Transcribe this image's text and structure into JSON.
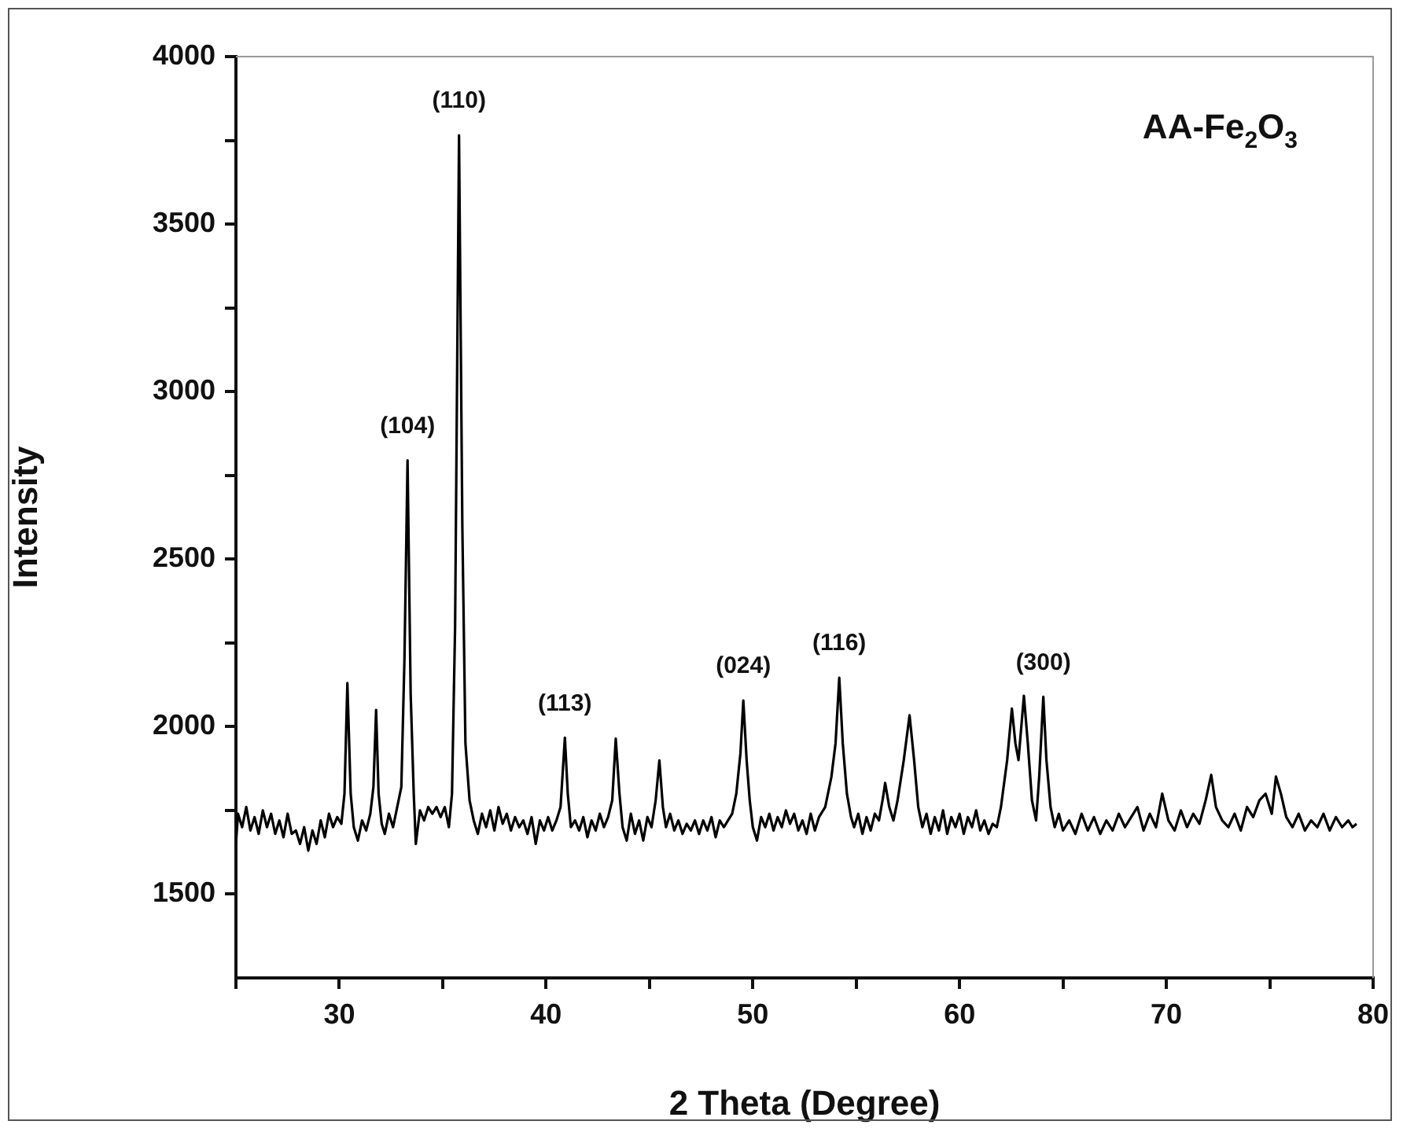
{
  "chart_data": {
    "type": "line",
    "xlabel": "2 Theta (Degree)",
    "ylabel": "Intensity",
    "xlim": [
      25,
      80
    ],
    "xticks": [
      {
        "value": 25,
        "label": null
      },
      30,
      {
        "value": 35,
        "label": null
      },
      40,
      {
        "value": 45,
        "label": null
      },
      50,
      {
        "value": 55,
        "label": null
      },
      60,
      {
        "value": 65,
        "label": null
      },
      70,
      {
        "value": 75,
        "label": null
      },
      80
    ],
    "ylim": [
      1250,
      4000
    ],
    "yticks": [
      1500,
      {
        "value": 1750,
        "label": null
      },
      2000,
      {
        "value": 2250,
        "label": null
      },
      2500,
      {
        "value": 2750,
        "label": null
      },
      3000,
      {
        "value": 3250,
        "label": null
      },
      3500,
      {
        "value": 3750,
        "label": null
      },
      4000
    ],
    "grid": false,
    "legend": false,
    "marker": "none",
    "line_style": "solid",
    "annotations": [
      "AA-Fe$_{2}$O$_{3}$",
      {
        "text": "(104)",
        "x": 33.3,
        "y": 2795
      },
      {
        "text": "(110)",
        "x": 35.79,
        "y": 3765
      },
      {
        "text": "(113)",
        "x": 40.91,
        "y": 1967
      },
      {
        "text": "(024)",
        "x": 49.54,
        "y": 2078
      },
      {
        "text": "(116)",
        "x": 54.18,
        "y": 2146
      },
      {
        "text": "(300)",
        "x": 64.05,
        "y": 2089
      }
    ],
    "series": [
      {
        "color": "#000000",
        "x": [
          25.0,
          25.1,
          25.3,
          25.5,
          25.7,
          25.9,
          26.1,
          26.3,
          26.5,
          26.7,
          26.9,
          27.1,
          27.3,
          27.5,
          27.7,
          27.9,
          28.1,
          28.3,
          28.5,
          28.7,
          28.9,
          29.1,
          29.3,
          29.5,
          29.7,
          29.9,
          30.1,
          30.25,
          30.39,
          30.55,
          30.7,
          30.9,
          31.1,
          31.3,
          31.5,
          31.65,
          31.78,
          31.9,
          32.05,
          32.2,
          32.4,
          32.6,
          32.8,
          33.0,
          33.15,
          33.3,
          33.45,
          33.6,
          33.7,
          33.9,
          34.1,
          34.3,
          34.5,
          34.7,
          34.9,
          35.1,
          35.3,
          35.45,
          35.6,
          35.79,
          35.95,
          36.1,
          36.3,
          36.5,
          36.7,
          36.9,
          37.1,
          37.3,
          37.5,
          37.7,
          37.9,
          38.1,
          38.3,
          38.5,
          38.7,
          38.9,
          39.1,
          39.3,
          39.5,
          39.7,
          39.9,
          40.1,
          40.3,
          40.5,
          40.7,
          40.91,
          41.05,
          41.2,
          41.4,
          41.6,
          41.8,
          42.0,
          42.2,
          42.4,
          42.6,
          42.8,
          43.0,
          43.2,
          43.37,
          43.55,
          43.7,
          43.9,
          44.1,
          44.3,
          44.5,
          44.7,
          44.9,
          45.1,
          45.3,
          45.48,
          45.65,
          45.8,
          46.0,
          46.2,
          46.4,
          46.6,
          46.8,
          47.0,
          47.2,
          47.4,
          47.6,
          47.8,
          48.0,
          48.2,
          48.4,
          48.6,
          48.8,
          49.0,
          49.2,
          49.4,
          49.54,
          49.7,
          49.85,
          50.0,
          50.2,
          50.4,
          50.6,
          50.8,
          51.0,
          51.2,
          51.4,
          51.6,
          51.8,
          52.0,
          52.2,
          52.4,
          52.6,
          52.8,
          53.0,
          53.2,
          53.5,
          53.8,
          54.0,
          54.18,
          54.35,
          54.55,
          54.75,
          54.9,
          55.1,
          55.3,
          55.5,
          55.7,
          55.9,
          56.1,
          56.3,
          56.4,
          56.6,
          56.8,
          57.0,
          57.3,
          57.58,
          57.8,
          58.0,
          58.2,
          58.4,
          58.6,
          58.8,
          59.0,
          59.2,
          59.4,
          59.6,
          59.8,
          60.0,
          60.2,
          60.4,
          60.6,
          60.8,
          61.0,
          61.2,
          61.4,
          61.6,
          61.8,
          62.0,
          62.3,
          62.53,
          62.7,
          62.85,
          63.11,
          63.3,
          63.5,
          63.7,
          63.85,
          64.05,
          64.2,
          64.4,
          64.6,
          64.8,
          65.0,
          65.3,
          65.6,
          65.9,
          66.2,
          66.5,
          66.8,
          67.1,
          67.4,
          67.7,
          68.0,
          68.3,
          68.6,
          68.9,
          69.2,
          69.5,
          69.8,
          70.1,
          70.4,
          70.7,
          71.0,
          71.3,
          71.6,
          71.9,
          72.17,
          72.4,
          72.7,
          73.0,
          73.3,
          73.6,
          73.9,
          74.2,
          74.5,
          74.8,
          75.1,
          75.3,
          75.54,
          75.8,
          76.1,
          76.4,
          76.7,
          77.0,
          77.3,
          77.6,
          77.9,
          78.2,
          78.5,
          78.8,
          79.0,
          79.2
        ],
        "values": [
          1650,
          1740,
          1700,
          1760,
          1690,
          1730,
          1680,
          1750,
          1700,
          1740,
          1680,
          1720,
          1670,
          1740,
          1680,
          1690,
          1650,
          1700,
          1630,
          1690,
          1650,
          1720,
          1670,
          1740,
          1700,
          1730,
          1710,
          1800,
          2130,
          1800,
          1700,
          1660,
          1720,
          1690,
          1740,
          1820,
          2050,
          1800,
          1710,
          1680,
          1740,
          1700,
          1760,
          1820,
          2200,
          2795,
          2100,
          1800,
          1650,
          1750,
          1720,
          1760,
          1740,
          1760,
          1730,
          1760,
          1700,
          1800,
          2300,
          3765,
          2600,
          1950,
          1780,
          1720,
          1680,
          1740,
          1700,
          1750,
          1690,
          1760,
          1710,
          1740,
          1690,
          1730,
          1700,
          1720,
          1680,
          1730,
          1650,
          1720,
          1690,
          1730,
          1690,
          1720,
          1760,
          1967,
          1800,
          1700,
          1720,
          1690,
          1730,
          1670,
          1720,
          1690,
          1740,
          1700,
          1730,
          1780,
          1964,
          1800,
          1700,
          1660,
          1740,
          1680,
          1720,
          1660,
          1730,
          1700,
          1780,
          1899,
          1760,
          1700,
          1740,
          1690,
          1720,
          1680,
          1710,
          1690,
          1720,
          1680,
          1720,
          1690,
          1730,
          1670,
          1720,
          1700,
          1720,
          1740,
          1800,
          1920,
          2078,
          1900,
          1780,
          1700,
          1660,
          1730,
          1700,
          1740,
          1690,
          1730,
          1700,
          1750,
          1710,
          1740,
          1690,
          1720,
          1680,
          1740,
          1690,
          1730,
          1760,
          1850,
          1950,
          2146,
          1950,
          1800,
          1730,
          1700,
          1740,
          1680,
          1730,
          1690,
          1740,
          1720,
          1790,
          1832,
          1760,
          1720,
          1780,
          1900,
          2034,
          1900,
          1760,
          1700,
          1740,
          1680,
          1730,
          1690,
          1750,
          1680,
          1730,
          1700,
          1740,
          1680,
          1730,
          1700,
          1750,
          1690,
          1720,
          1680,
          1710,
          1700,
          1760,
          1900,
          2054,
          1950,
          1900,
          2092,
          1950,
          1780,
          1720,
          1850,
          2089,
          1900,
          1760,
          1700,
          1740,
          1690,
          1720,
          1680,
          1740,
          1690,
          1730,
          1680,
          1720,
          1690,
          1740,
          1700,
          1730,
          1760,
          1690,
          1740,
          1700,
          1800,
          1720,
          1690,
          1750,
          1700,
          1740,
          1710,
          1780,
          1856,
          1760,
          1720,
          1700,
          1740,
          1690,
          1760,
          1730,
          1780,
          1800,
          1740,
          1851,
          1800,
          1730,
          1700,
          1740,
          1690,
          1720,
          1700,
          1740,
          1690,
          1730,
          1700,
          1720,
          1700,
          1710
        ]
      }
    ]
  }
}
